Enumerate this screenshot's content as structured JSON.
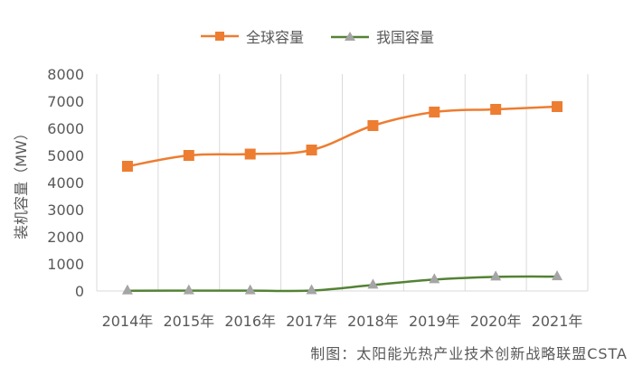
{
  "chart_data": {
    "type": "line",
    "title": "",
    "xlabel": "",
    "ylabel": "装机容量（MW）",
    "categories": [
      "2014年",
      "2015年",
      "2016年",
      "2017年",
      "2018年",
      "2019年",
      "2020年",
      "2021年"
    ],
    "series": [
      {
        "name": "全球容量",
        "color": "#ED7D31",
        "marker": "square",
        "values": [
          4600,
          5000,
          5050,
          5200,
          6100,
          6600,
          6700,
          6800
        ]
      },
      {
        "name": "我国容量",
        "color": "#548235",
        "marker": "triangle",
        "marker_color": "#A5A5A5",
        "values": [
          10,
          14,
          14,
          15,
          220,
          420,
          520,
          530
        ]
      }
    ],
    "ylim": [
      0,
      8000
    ],
    "yticks": [
      0,
      1000,
      2000,
      3000,
      4000,
      5000,
      6000,
      7000,
      8000
    ],
    "grid": "vertical",
    "legend_position": "top",
    "smooth": true
  },
  "legend": {
    "items": [
      {
        "label": "全球容量"
      },
      {
        "label": "我国容量"
      }
    ]
  },
  "axis": {
    "ylabel": "装机容量（MW）"
  },
  "credit": "制图：太阳能光热产业技术创新战略联盟CSTA"
}
